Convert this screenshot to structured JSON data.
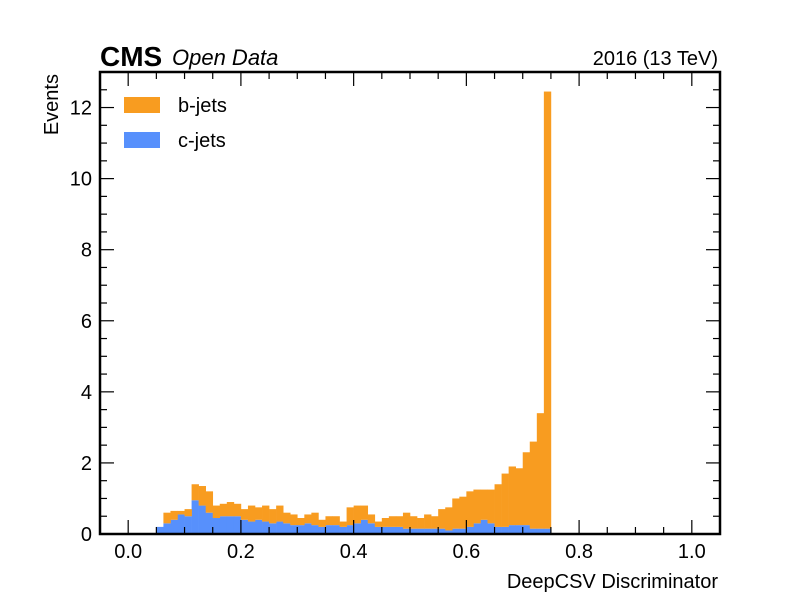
{
  "header": {
    "experiment": "CMS",
    "label": "Open Data",
    "lumi": "2016 (13 TeV)"
  },
  "chart_data": {
    "type": "stacked-histogram",
    "xlabel": "DeepCSV Discriminator",
    "ylabel": "Events",
    "xlim": [
      -0.05,
      1.05
    ],
    "ylim": [
      0,
      13
    ],
    "bin_edges_start": 0.0,
    "bin_width": 0.0125,
    "x_ticks": [
      "0.0",
      "0.2",
      "0.4",
      "0.6",
      "0.8",
      "1.0"
    ],
    "x_tick_values": [
      0.0,
      0.2,
      0.4,
      0.6,
      0.8,
      1.0
    ],
    "y_ticks": [
      "0",
      "2",
      "4",
      "6",
      "8",
      "10",
      "12"
    ],
    "y_tick_values": [
      0,
      2,
      4,
      6,
      8,
      10,
      12
    ],
    "legend_position": "top-left",
    "series": [
      {
        "name": "c-jets",
        "color": "#5790fc",
        "values": [
          0,
          0,
          0,
          0,
          0.2,
          0.3,
          0.4,
          0.55,
          0.5,
          0.95,
          0.8,
          0.6,
          0.45,
          0.5,
          0.5,
          0.5,
          0.4,
          0.35,
          0.4,
          0.35,
          0.3,
          0.35,
          0.3,
          0.25,
          0.25,
          0.3,
          0.25,
          0.2,
          0.25,
          0.25,
          0.2,
          0.25,
          0.3,
          0.4,
          0.3,
          0.2,
          0.2,
          0.2,
          0.2,
          0.15,
          0.15,
          0.15,
          0.15,
          0.15,
          0.15,
          0.1,
          0.15,
          0.15,
          0.2,
          0.3,
          0.4,
          0.3,
          0.2,
          0.2,
          0.25,
          0.25,
          0.25,
          0.15,
          0.15,
          0.15
        ]
      },
      {
        "name": "b-jets",
        "color": "#f89c20",
        "values": [
          0,
          0,
          0,
          0,
          0,
          0.3,
          0.25,
          0.1,
          0.2,
          0.45,
          0.55,
          0.6,
          0.35,
          0.35,
          0.4,
          0.35,
          0.3,
          0.45,
          0.35,
          0.45,
          0.4,
          0.45,
          0.3,
          0.3,
          0.2,
          0.25,
          0.35,
          0.2,
          0.25,
          0.25,
          0.15,
          0.5,
          0.5,
          0.4,
          0.25,
          0.15,
          0.25,
          0.3,
          0.3,
          0.45,
          0.35,
          0.3,
          0.4,
          0.35,
          0.55,
          0.65,
          0.85,
          0.9,
          1.0,
          0.95,
          0.85,
          0.95,
          1.2,
          1.5,
          1.65,
          1.6,
          2.05,
          2.45,
          3.25,
          12.3
        ]
      }
    ]
  }
}
